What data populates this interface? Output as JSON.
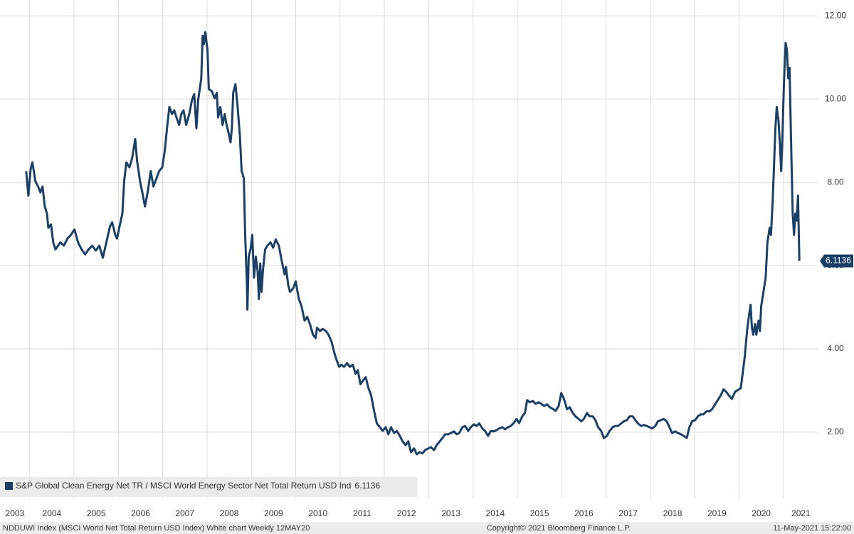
{
  "chart_data": {
    "type": "line",
    "x": [
      2003.92,
      2003.97,
      2004.02,
      2004.06,
      2004.13,
      2004.19,
      2004.24,
      2004.29,
      2004.34,
      2004.39,
      2004.42,
      2004.48,
      2004.53,
      2004.58,
      2004.64,
      2004.69,
      2004.77,
      2004.85,
      2004.93,
      2005.01,
      2005.09,
      2005.17,
      2005.25,
      2005.33,
      2005.41,
      2005.49,
      2005.57,
      2005.65,
      2005.73,
      2005.81,
      2005.86,
      2005.93,
      2005.97,
      2006.02,
      2006.09,
      2006.13,
      2006.18,
      2006.25,
      2006.31,
      2006.38,
      2006.42,
      2006.49,
      2006.54,
      2006.6,
      2006.66,
      2006.73,
      2006.79,
      2006.86,
      2006.92,
      2006.99,
      2007.05,
      2007.1,
      2007.15,
      2007.21,
      2007.26,
      2007.31,
      2007.37,
      2007.42,
      2007.47,
      2007.53,
      2007.6,
      2007.66,
      2007.71,
      2007.76,
      2007.8,
      2007.87,
      2007.9,
      2007.93,
      2007.96,
      2008.01,
      2008.04,
      2008.11,
      2008.17,
      2008.22,
      2008.25,
      2008.3,
      2008.35,
      2008.4,
      2008.43,
      2008.48,
      2008.53,
      2008.56,
      2008.59,
      2008.64,
      2008.69,
      2008.74,
      2008.78,
      2008.83,
      2008.86,
      2008.9,
      2008.91,
      2008.94,
      2008.98,
      2009.02,
      2009.06,
      2009.1,
      2009.14,
      2009.17,
      2009.2,
      2009.23,
      2009.26,
      2009.31,
      2009.36,
      2009.43,
      2009.49,
      2009.55,
      2009.62,
      2009.68,
      2009.75,
      2009.78,
      2009.83,
      2009.87,
      2009.94,
      2010.0,
      2010.07,
      2010.13,
      2010.2,
      2010.26,
      2010.32,
      2010.39,
      2010.45,
      2010.48,
      2010.55,
      2010.61,
      2010.68,
      2010.74,
      2010.81,
      2010.87,
      2010.92,
      2010.98,
      2011.03,
      2011.09,
      2011.16,
      2011.22,
      2011.29,
      2011.35,
      2011.4,
      2011.46,
      2011.51,
      2011.58,
      2011.64,
      2011.7,
      2011.77,
      2011.83,
      2011.9,
      2011.96,
      2012.03,
      2012.09,
      2012.15,
      2012.22,
      2012.28,
      2012.35,
      2012.41,
      2012.48,
      2012.54,
      2012.6,
      2012.67,
      2012.73,
      2012.8,
      2012.86,
      2012.92,
      2012.99,
      2013.05,
      2013.12,
      2013.18,
      2013.25,
      2013.31,
      2013.37,
      2013.44,
      2013.5,
      2013.57,
      2013.63,
      2013.69,
      2013.76,
      2013.82,
      2013.89,
      2013.95,
      2014.02,
      2014.08,
      2014.14,
      2014.21,
      2014.27,
      2014.34,
      2014.4,
      2014.47,
      2014.53,
      2014.59,
      2014.66,
      2014.72,
      2014.79,
      2014.85,
      2014.91,
      2014.98,
      2015.04,
      2015.11,
      2015.17,
      2015.22,
      2015.28,
      2015.35,
      2015.41,
      2015.48,
      2015.54,
      2015.6,
      2015.67,
      2015.73,
      2015.8,
      2015.86,
      2015.93,
      2015.99,
      2016.05,
      2016.12,
      2016.18,
      2016.25,
      2016.31,
      2016.38,
      2016.44,
      2016.5,
      2016.57,
      2016.63,
      2016.7,
      2016.76,
      2016.82,
      2016.89,
      2016.95,
      2017.02,
      2017.08,
      2017.15,
      2017.21,
      2017.27,
      2017.34,
      2017.4,
      2017.47,
      2017.53,
      2017.6,
      2017.66,
      2017.72,
      2017.79,
      2017.85,
      2017.92,
      2017.98,
      2018.04,
      2018.11,
      2018.17,
      2018.24,
      2018.3,
      2018.37,
      2018.43,
      2018.49,
      2018.56,
      2018.62,
      2018.69,
      2018.75,
      2018.82,
      2018.88,
      2018.94,
      2019.01,
      2019.07,
      2019.14,
      2019.2,
      2019.26,
      2019.33,
      2019.39,
      2019.46,
      2019.52,
      2019.59,
      2019.65,
      2019.71,
      2019.78,
      2019.84,
      2019.91,
      2019.97,
      2020.04,
      2020.08,
      2020.13,
      2020.18,
      2020.23,
      2020.26,
      2020.29,
      2020.32,
      2020.36,
      2020.39,
      2020.44,
      2020.47,
      2020.5,
      2020.55,
      2020.6,
      2020.64,
      2020.69,
      2020.72,
      2020.76,
      2020.79,
      2020.82,
      2020.85,
      2020.89,
      2020.92,
      2020.95,
      2020.98,
      2021.01,
      2021.05,
      2021.08,
      2021.11,
      2021.14,
      2021.17,
      2021.21,
      2021.24,
      2021.27,
      2021.3,
      2021.33,
      2021.34,
      2021.36
    ],
    "series": [
      {
        "name": "S&P Global Clean Energy Net TR / MSCI World Energy Sector Net Total Return USD Ind",
        "color": "#1c3f66",
        "values": [
          8.27,
          7.68,
          8.31,
          8.48,
          8.02,
          7.9,
          7.76,
          7.9,
          7.42,
          7.25,
          6.91,
          6.99,
          6.56,
          6.39,
          6.48,
          6.56,
          6.48,
          6.65,
          6.74,
          6.87,
          6.56,
          6.39,
          6.27,
          6.39,
          6.48,
          6.36,
          6.48,
          6.19,
          6.56,
          6.94,
          7.04,
          6.74,
          6.65,
          6.91,
          7.25,
          8.02,
          8.48,
          8.36,
          8.58,
          9.04,
          8.53,
          8.02,
          7.76,
          7.42,
          7.76,
          8.27,
          7.9,
          8.1,
          8.27,
          8.36,
          8.79,
          9.33,
          9.81,
          9.64,
          9.73,
          9.56,
          9.38,
          9.64,
          9.73,
          9.38,
          9.64,
          9.98,
          10.12,
          9.3,
          9.98,
          10.5,
          11.52,
          11.32,
          11.61,
          11.18,
          10.24,
          10.19,
          10.02,
          10.15,
          9.56,
          9.81,
          9.38,
          9.64,
          9.44,
          9.21,
          8.96,
          9.3,
          10.15,
          10.36,
          9.81,
          9.13,
          8.27,
          8.1,
          6.74,
          5.54,
          4.94,
          6.22,
          6.39,
          6.74,
          5.71,
          6.22,
          5.88,
          5.2,
          6.05,
          5.37,
          5.88,
          6.39,
          6.48,
          6.56,
          6.43,
          6.63,
          6.48,
          6.14,
          5.79,
          5.97,
          5.54,
          5.37,
          5.45,
          5.62,
          5.2,
          5.03,
          4.68,
          4.77,
          4.6,
          4.34,
          4.26,
          4.51,
          4.43,
          4.48,
          4.43,
          4.34,
          4.17,
          3.91,
          3.74,
          3.57,
          3.62,
          3.57,
          3.66,
          3.57,
          3.62,
          3.4,
          3.49,
          3.15,
          3.23,
          3.32,
          3.06,
          2.89,
          2.5,
          2.21,
          2.12,
          2.03,
          2.12,
          1.95,
          2.12,
          1.98,
          2.03,
          1.91,
          1.78,
          1.69,
          1.78,
          1.52,
          1.61,
          1.47,
          1.52,
          1.49,
          1.57,
          1.61,
          1.64,
          1.57,
          1.69,
          1.78,
          1.86,
          1.95,
          1.95,
          1.98,
          2.02,
          1.95,
          1.98,
          2.12,
          2.15,
          2.03,
          2.12,
          2.19,
          2.15,
          2.21,
          2.09,
          2.03,
          1.91,
          2.03,
          2.02,
          2.05,
          2.09,
          2.12,
          2.07,
          2.12,
          2.15,
          2.21,
          2.32,
          2.22,
          2.38,
          2.46,
          2.77,
          2.72,
          2.75,
          2.68,
          2.72,
          2.68,
          2.63,
          2.67,
          2.6,
          2.56,
          2.51,
          2.63,
          2.94,
          2.8,
          2.55,
          2.6,
          2.46,
          2.38,
          2.32,
          2.26,
          2.32,
          2.46,
          2.38,
          2.38,
          2.29,
          2.12,
          2.03,
          1.86,
          1.91,
          2.03,
          2.12,
          2.15,
          2.15,
          2.21,
          2.26,
          2.29,
          2.38,
          2.38,
          2.29,
          2.21,
          2.15,
          2.17,
          2.15,
          2.12,
          2.09,
          2.15,
          2.26,
          2.29,
          2.32,
          2.26,
          2.12,
          1.98,
          2.02,
          1.98,
          1.95,
          1.91,
          1.86,
          2.12,
          2.26,
          2.29,
          2.38,
          2.43,
          2.43,
          2.5,
          2.5,
          2.55,
          2.67,
          2.77,
          2.89,
          3.03,
          2.97,
          2.87,
          2.8,
          2.97,
          3.01,
          3.06,
          3.4,
          3.83,
          4.43,
          4.85,
          5.06,
          4.51,
          4.34,
          4.6,
          4.34,
          4.68,
          4.43,
          5.03,
          5.37,
          5.71,
          6.56,
          6.91,
          6.74,
          7.59,
          8.44,
          9.3,
          9.81,
          9.47,
          8.96,
          8.27,
          9.13,
          10.32,
          11.35,
          11.18,
          10.5,
          10.75,
          9.13,
          7.25,
          6.74,
          7.25,
          7.08,
          7.68,
          7.16,
          6.1136
        ]
      }
    ],
    "xlim": [
      2003.33,
      2021.79
    ],
    "ylim": [
      0.41,
      12.38
    ],
    "xticks": [
      {
        "value": 2003,
        "label": "2003"
      },
      {
        "value": 2004,
        "label": "2004"
      },
      {
        "value": 2005,
        "label": "2005"
      },
      {
        "value": 2006,
        "label": "2006"
      },
      {
        "value": 2007,
        "label": "2007"
      },
      {
        "value": 2008,
        "label": "2008"
      },
      {
        "value": 2009,
        "label": "2009"
      },
      {
        "value": 2010,
        "label": "2010"
      },
      {
        "value": 2011,
        "label": "2011"
      },
      {
        "value": 2012,
        "label": "2012"
      },
      {
        "value": 2013,
        "label": "2013"
      },
      {
        "value": 2014,
        "label": "2014"
      },
      {
        "value": 2015,
        "label": "2015"
      },
      {
        "value": 2016,
        "label": "2016"
      },
      {
        "value": 2017,
        "label": "2017"
      },
      {
        "value": 2018,
        "label": "2018"
      },
      {
        "value": 2019,
        "label": "2019"
      },
      {
        "value": 2020,
        "label": "2020"
      },
      {
        "value": 2021,
        "label": "2021"
      }
    ],
    "yticks": [
      {
        "value": 2,
        "label": "2.00"
      },
      {
        "value": 4,
        "label": "4.00"
      },
      {
        "value": 6,
        "label": "6.00"
      },
      {
        "value": 8,
        "label": "8.00"
      },
      {
        "value": 10,
        "label": "10.00"
      },
      {
        "value": 12,
        "label": "12.00"
      }
    ],
    "grid": true,
    "legend": "bottom-left",
    "footer": {
      "left": "NDDUWI Index (MSCI World Net Total Return USD Index) White chart  Weekly 12MAY20",
      "center": "Copyright© 2021 Bloomberg Finance L.P.",
      "right": "11-May-2021 15:22:00"
    }
  }
}
